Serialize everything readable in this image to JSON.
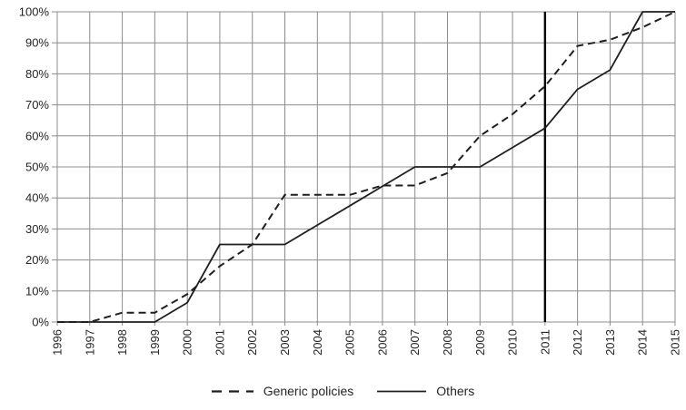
{
  "chart_data": {
    "type": "line",
    "title": "",
    "xlabel": "",
    "ylabel": "",
    "x": [
      "1996",
      "1997",
      "1998",
      "1999",
      "2000",
      "2001",
      "2002",
      "2003",
      "2004",
      "2005",
      "2006",
      "2007",
      "2008",
      "2009",
      "2010",
      "2011",
      "2012",
      "2013",
      "2014",
      "2015"
    ],
    "series": [
      {
        "name": "Generic policies",
        "style": "dashed",
        "values": [
          0,
          0,
          3,
          3,
          9,
          18,
          25,
          41,
          41,
          41,
          44,
          44,
          48,
          60,
          67,
          76,
          89,
          91,
          95,
          100
        ]
      },
      {
        "name": "Others",
        "style": "solid",
        "values": [
          0,
          0,
          0,
          0,
          6.25,
          25,
          25,
          25,
          31.25,
          37.5,
          43.75,
          50,
          50,
          50,
          56.25,
          62.5,
          75,
          81.25,
          100,
          100
        ]
      }
    ],
    "ylim": [
      0,
      100
    ],
    "y_tick_step": 10,
    "y_tick_labels": [
      "0%",
      "10%",
      "20%",
      "30%",
      "40%",
      "50%",
      "60%",
      "70%",
      "80%",
      "90%",
      "100%"
    ],
    "grid": "on",
    "legend_position": "bottom-center",
    "marker_line": {
      "x": "2011",
      "color": "#000000"
    },
    "colors": {
      "series_line": "#1f1f1f",
      "grid": "#8c8c8c",
      "axis": "#8c8c8c",
      "text": "#262626",
      "background": "#ffffff"
    }
  }
}
